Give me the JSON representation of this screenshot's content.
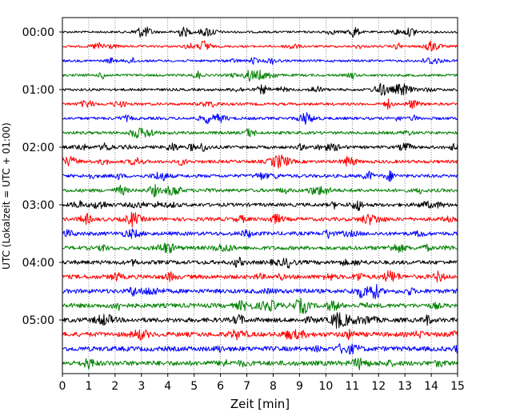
{
  "chart_data": {
    "type": "line",
    "title": "",
    "xlabel": "Zeit  [min]",
    "ylabel": "UTC (Lokalzeit = UTC + 01:00)",
    "xlim": [
      0,
      15
    ],
    "x_ticks": [
      0,
      1,
      2,
      3,
      4,
      5,
      6,
      7,
      8,
      9,
      10,
      11,
      12,
      13,
      14,
      15
    ],
    "x_tick_labels": [
      "0",
      "1",
      "2",
      "3",
      "4",
      "5",
      "6",
      "7",
      "8",
      "9",
      "10",
      "11",
      "12",
      "13",
      "14",
      "15"
    ],
    "y_tick_labels": [
      {
        "label": "00:00",
        "trace_index": 0
      },
      {
        "label": "01:00",
        "trace_index": 4
      },
      {
        "label": "02:00",
        "trace_index": 8
      },
      {
        "label": "03:00",
        "trace_index": 12
      },
      {
        "label": "04:00",
        "trace_index": 16
      },
      {
        "label": "05:00",
        "trace_index": 20
      }
    ],
    "grid": {
      "vertical": true,
      "style": "dotted"
    },
    "trace_minutes": 15,
    "trace_colors": [
      "#000000",
      "#ff0000",
      "#0000ff",
      "#008000"
    ],
    "traces": [
      {
        "start": "00:00",
        "color": "#000000"
      },
      {
        "start": "00:15",
        "color": "#ff0000"
      },
      {
        "start": "00:30",
        "color": "#0000ff"
      },
      {
        "start": "00:45",
        "color": "#008000"
      },
      {
        "start": "01:00",
        "color": "#000000"
      },
      {
        "start": "01:15",
        "color": "#ff0000"
      },
      {
        "start": "01:30",
        "color": "#0000ff"
      },
      {
        "start": "01:45",
        "color": "#008000"
      },
      {
        "start": "02:00",
        "color": "#000000"
      },
      {
        "start": "02:15",
        "color": "#ff0000"
      },
      {
        "start": "02:30",
        "color": "#0000ff"
      },
      {
        "start": "02:45",
        "color": "#008000"
      },
      {
        "start": "03:00",
        "color": "#000000"
      },
      {
        "start": "03:15",
        "color": "#ff0000"
      },
      {
        "start": "03:30",
        "color": "#0000ff"
      },
      {
        "start": "03:45",
        "color": "#008000"
      },
      {
        "start": "04:00",
        "color": "#000000"
      },
      {
        "start": "04:15",
        "color": "#ff0000"
      },
      {
        "start": "04:30",
        "color": "#0000ff"
      },
      {
        "start": "04:45",
        "color": "#008000"
      },
      {
        "start": "05:00",
        "color": "#000000"
      },
      {
        "start": "05:15",
        "color": "#ff0000"
      },
      {
        "start": "05:30",
        "color": "#0000ff"
      },
      {
        "start": "05:45",
        "color": "#008000"
      }
    ]
  }
}
